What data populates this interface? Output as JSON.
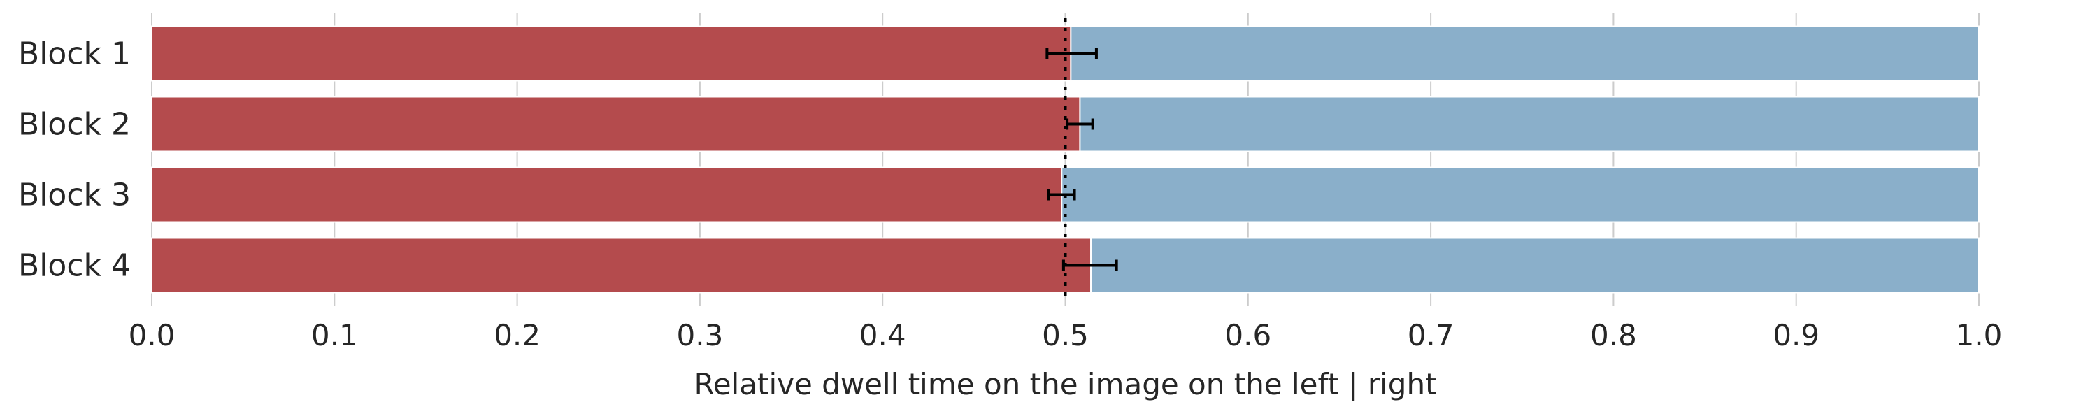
{
  "chart_data": {
    "type": "bar",
    "orientation": "horizontal",
    "stacked": true,
    "title": "",
    "xlabel": "Relative dwell time on the image on the left | right",
    "ylabel": "",
    "xlim": [
      0.0,
      1.0
    ],
    "x_ticks": [
      "0.0",
      "0.1",
      "0.2",
      "0.3",
      "0.4",
      "0.5",
      "0.6",
      "0.7",
      "0.8",
      "0.9",
      "1.0"
    ],
    "x_tick_values": [
      0.0,
      0.1,
      0.2,
      0.3,
      0.4,
      0.5,
      0.6,
      0.7,
      0.8,
      0.9,
      1.0
    ],
    "categories": [
      "Block 1",
      "Block 2",
      "Block 3",
      "Block 4"
    ],
    "series": [
      {
        "values": [
          0.503,
          0.508,
          0.498,
          0.514
        ],
        "color": "#b44b4d"
      },
      {
        "values": [
          0.497,
          0.492,
          0.502,
          0.486
        ],
        "color": "#8aafca"
      }
    ],
    "error_bars": {
      "lower": [
        0.49,
        0.501,
        0.491,
        0.499
      ],
      "upper": [
        0.517,
        0.515,
        0.505,
        0.528
      ]
    },
    "reference_line": {
      "x": 0.5,
      "style": "dotted"
    },
    "grid": "x"
  }
}
